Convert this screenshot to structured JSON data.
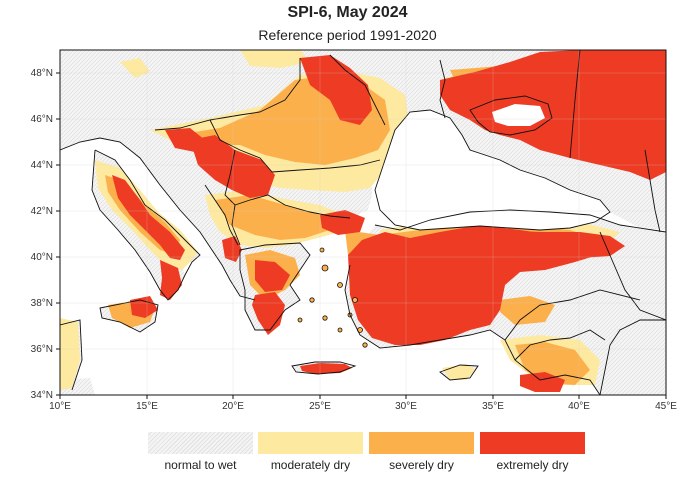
{
  "title": "SPI-6, May 2024",
  "subtitle": "Reference period 1991-2020",
  "axes": {
    "x_ticks": [
      "10°E",
      "15°E",
      "20°E",
      "25°E",
      "30°E",
      "35°E",
      "40°E",
      "45°E"
    ],
    "y_ticks": [
      "34°N",
      "36°N",
      "38°N",
      "40°N",
      "42°N",
      "44°N",
      "46°N",
      "48°N"
    ]
  },
  "legend": [
    {
      "label": "normal to wet",
      "color": "#f3f3f3"
    },
    {
      "label": "moderately dry",
      "color": "#fde9a0"
    },
    {
      "label": "severely dry",
      "color": "#fcb04c"
    },
    {
      "label": "extremely dry",
      "color": "#ee3b24"
    }
  ],
  "colors": {
    "sea": "#ffffff",
    "normal": "#f3f3f3",
    "moderate": "#fde9a0",
    "severe": "#fcb04c",
    "extreme": "#ee3b24",
    "border": "#111111"
  }
}
